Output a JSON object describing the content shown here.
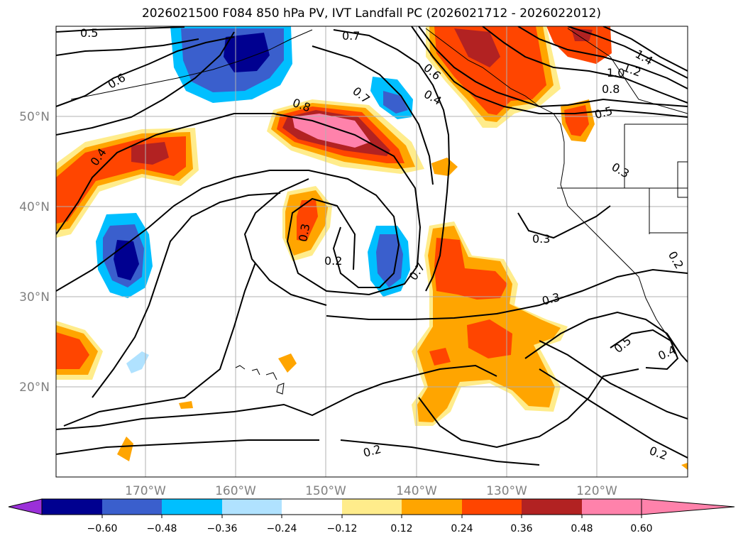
{
  "title": "2026021500 F084 850 hPa PV, IVT Landfall PC (2026021712 - 2026022012)",
  "map": {
    "lon_range": [
      -180,
      -110
    ],
    "lat_range": [
      10,
      60
    ],
    "lat_labels": [
      "20°N",
      "30°N",
      "40°N",
      "50°N"
    ],
    "lon_labels": [
      "170°W",
      "160°W",
      "150°W",
      "140°W",
      "130°W",
      "120°W"
    ],
    "contour_labels": [
      "0.5",
      "0.6",
      "0.4",
      "0.7",
      "0.8",
      "0.7",
      "0.6",
      "0.4",
      "1.4",
      "1.2",
      "1.0",
      "0.8",
      "0.5",
      "0.3",
      "0.3",
      "0.2",
      "0.3",
      "0.7",
      "0.3",
      "0.5",
      "0.4",
      "0.2",
      "0.2",
      "0.2"
    ]
  },
  "colorbar": {
    "ticks": [
      "−0.60",
      "−0.48",
      "−0.36",
      "−0.24",
      "−0.12",
      "0.12",
      "0.24",
      "0.36",
      "0.48",
      "0.60"
    ],
    "colors": [
      "#9b30d9",
      "#000090",
      "#3a5fcd",
      "#00bfff",
      "#b0e2ff",
      "#ffffff",
      "#ffec8b",
      "#ffa500",
      "#ff4500",
      "#b22222",
      "#ff82ab"
    ]
  }
}
